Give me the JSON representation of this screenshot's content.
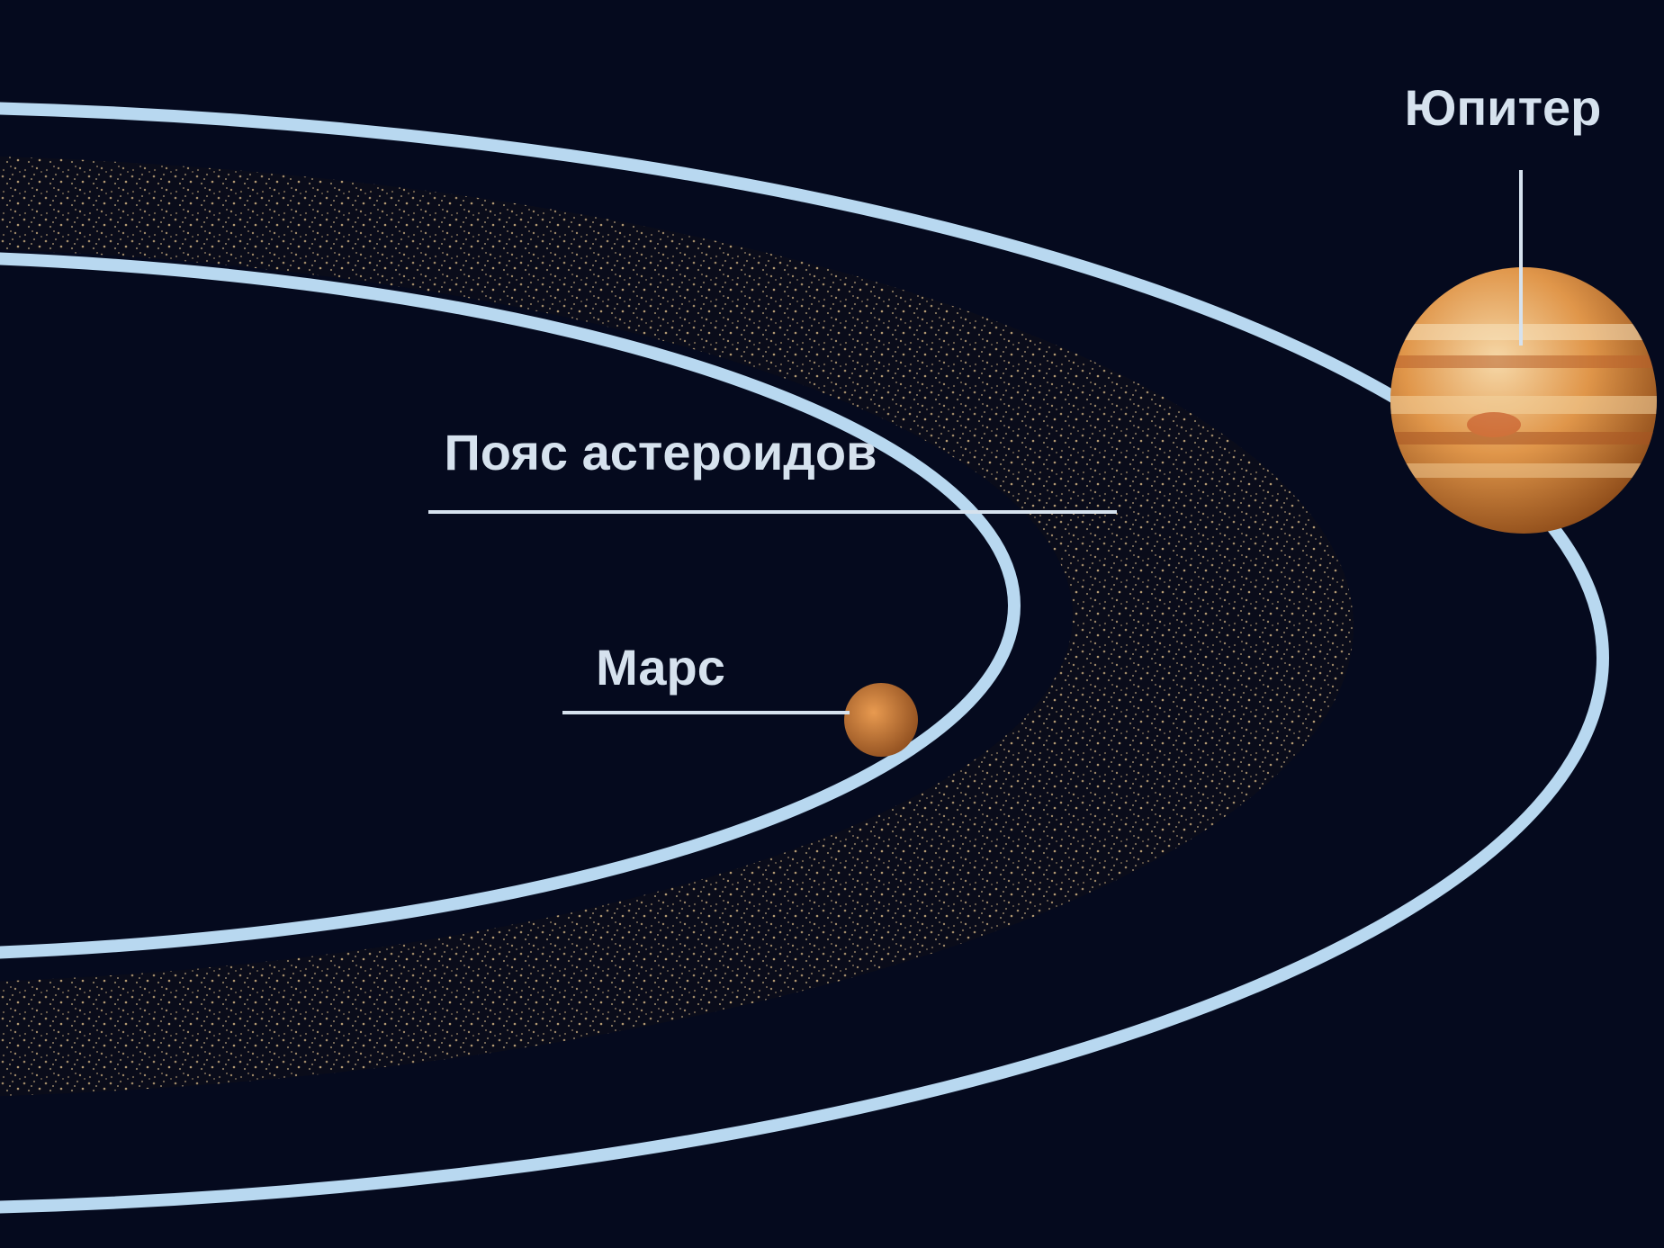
{
  "labels": {
    "jupiter": "Юпитер",
    "belt": "Пояс астероидов",
    "mars": "Марс"
  }
}
